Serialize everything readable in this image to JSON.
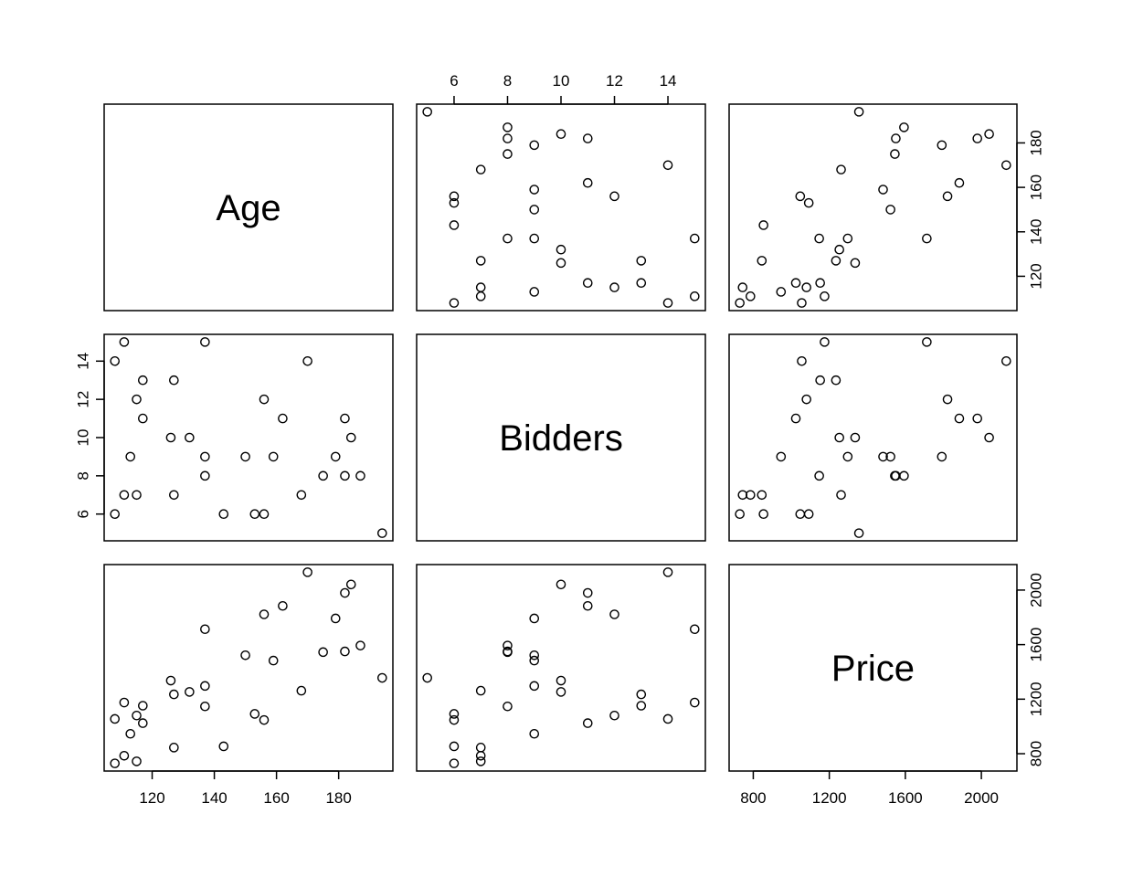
{
  "chart_data": {
    "type": "scatter",
    "variables": [
      "Age",
      "Bidders",
      "Price"
    ],
    "ranges": {
      "Age": [
        108,
        194
      ],
      "Bidders": [
        5,
        15
      ],
      "Price": [
        729,
        2131
      ]
    },
    "ticks": {
      "Age": [
        120,
        140,
        160,
        180
      ],
      "Bidders": [
        6,
        8,
        10,
        12,
        14
      ],
      "Price": [
        800,
        1200,
        1600,
        2000
      ]
    },
    "tick_labels": {
      "Age": [
        "120",
        "140",
        "160",
        "180"
      ],
      "Bidders": [
        "6",
        "8",
        "10",
        "12",
        "14"
      ],
      "Price": [
        "800",
        "1200",
        "1600",
        "2000"
      ]
    },
    "records": [
      {
        "Age": 127,
        "Bidders": 13,
        "Price": 1235
      },
      {
        "Age": 115,
        "Bidders": 12,
        "Price": 1080
      },
      {
        "Age": 127,
        "Bidders": 7,
        "Price": 845
      },
      {
        "Age": 150,
        "Bidders": 9,
        "Price": 1522
      },
      {
        "Age": 156,
        "Bidders": 6,
        "Price": 1047
      },
      {
        "Age": 182,
        "Bidders": 11,
        "Price": 1979
      },
      {
        "Age": 156,
        "Bidders": 12,
        "Price": 1822
      },
      {
        "Age": 132,
        "Bidders": 10,
        "Price": 1253
      },
      {
        "Age": 137,
        "Bidders": 9,
        "Price": 1297
      },
      {
        "Age": 113,
        "Bidders": 9,
        "Price": 946
      },
      {
        "Age": 137,
        "Bidders": 15,
        "Price": 1713
      },
      {
        "Age": 117,
        "Bidders": 11,
        "Price": 1024
      },
      {
        "Age": 137,
        "Bidders": 8,
        "Price": 1147
      },
      {
        "Age": 153,
        "Bidders": 6,
        "Price": 1092
      },
      {
        "Age": 117,
        "Bidders": 13,
        "Price": 1152
      },
      {
        "Age": 126,
        "Bidders": 10,
        "Price": 1336
      },
      {
        "Age": 170,
        "Bidders": 14,
        "Price": 2131
      },
      {
        "Age": 182,
        "Bidders": 8,
        "Price": 1550
      },
      {
        "Age": 162,
        "Bidders": 11,
        "Price": 1884
      },
      {
        "Age": 184,
        "Bidders": 10,
        "Price": 2041
      },
      {
        "Age": 143,
        "Bidders": 6,
        "Price": 854
      },
      {
        "Age": 159,
        "Bidders": 9,
        "Price": 1483
      },
      {
        "Age": 108,
        "Bidders": 14,
        "Price": 1055
      },
      {
        "Age": 175,
        "Bidders": 8,
        "Price": 1545
      },
      {
        "Age": 108,
        "Bidders": 6,
        "Price": 729
      },
      {
        "Age": 179,
        "Bidders": 9,
        "Price": 1792
      },
      {
        "Age": 111,
        "Bidders": 15,
        "Price": 1175
      },
      {
        "Age": 187,
        "Bidders": 8,
        "Price": 1593
      },
      {
        "Age": 111,
        "Bidders": 7,
        "Price": 785
      },
      {
        "Age": 115,
        "Bidders": 7,
        "Price": 744
      },
      {
        "Age": 194,
        "Bidders": 5,
        "Price": 1356
      },
      {
        "Age": 168,
        "Bidders": 7,
        "Price": 1262
      }
    ]
  }
}
